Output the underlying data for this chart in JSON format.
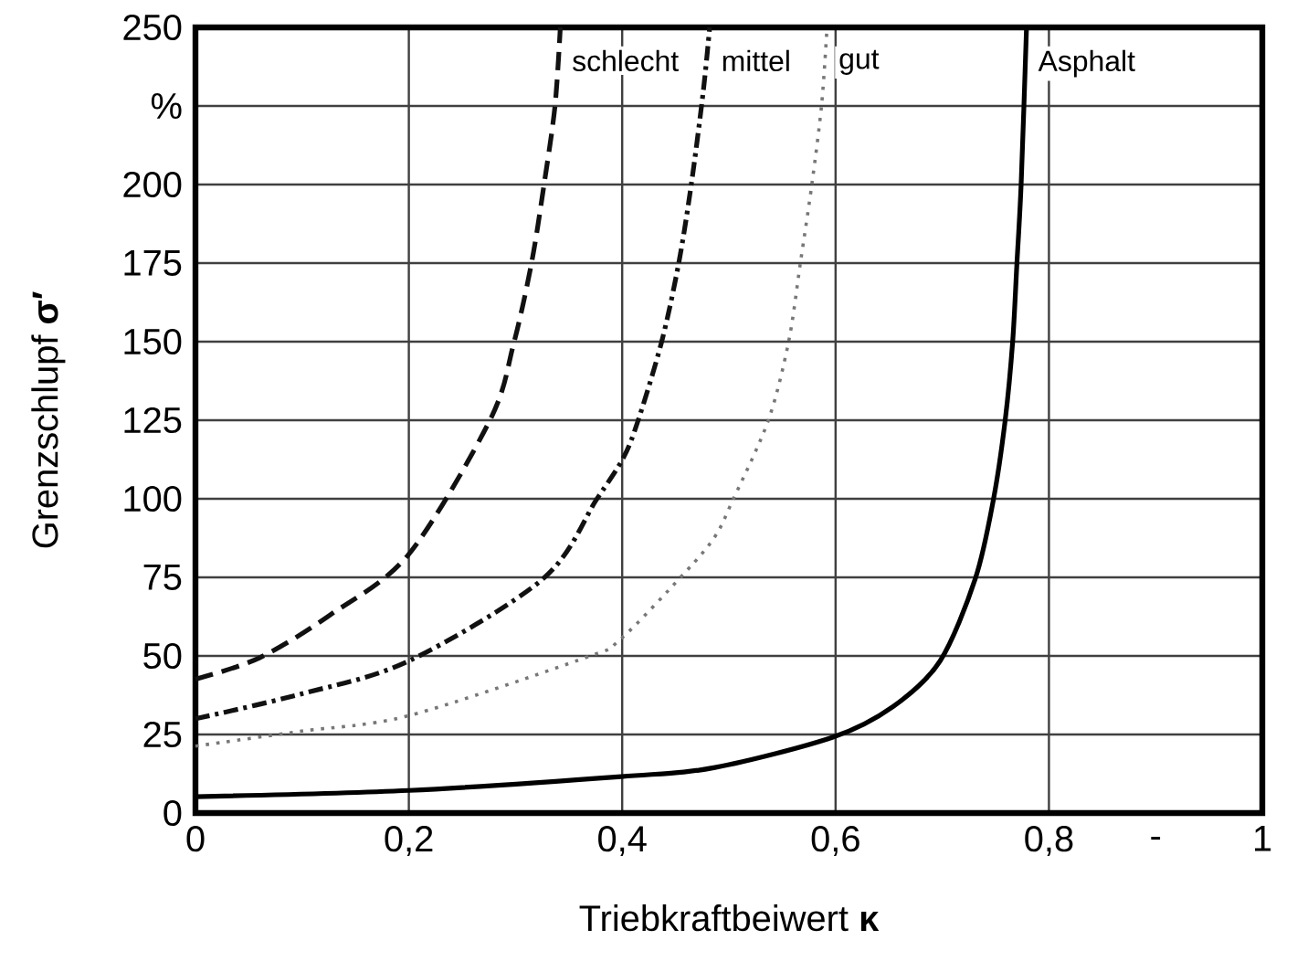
{
  "chart_data": {
    "type": "line",
    "xlabel": "Triebkraftbeiwert **κ**",
    "ylabel": "Grenzschlupf **σ′**",
    "annotations": [
      "-"
    ],
    "xlim": [
      0,
      1
    ],
    "ylim": [
      0,
      250
    ],
    "xticks": [
      0,
      {
        "value": 0.2,
        "label": "0,2"
      },
      {
        "value": 0.4,
        "label": "0,4"
      },
      {
        "value": 0.6,
        "label": "0,6"
      },
      {
        "value": 0.8,
        "label": "0,8"
      },
      1
    ],
    "yticks": [
      0,
      25,
      50,
      75,
      100,
      125,
      150,
      175,
      200,
      {
        "value": 225,
        "label": "%"
      },
      250
    ],
    "grid": true,
    "marker": "none",
    "series": [
      {
        "name": "schlecht",
        "color": "#111111",
        "line_style": "dashed",
        "x": [
          0,
          0.06,
          0.126,
          0.2,
          0.276,
          0.298,
          0.315,
          0.327,
          0.337,
          0.342
        ],
        "values": [
          42.6,
          49.4,
          63,
          82.4,
          125,
          149,
          175,
          200.6,
          225,
          250
        ]
      },
      {
        "name": "mittel",
        "color": "#111111",
        "line_style": "dashdot",
        "x": [
          0,
          0.098,
          0.2,
          0.326,
          0.376,
          0.401,
          0.415,
          0.437,
          0.453,
          0.465,
          0.476,
          0.482
        ],
        "values": [
          30,
          37.8,
          48.4,
          74.6,
          99.8,
          113,
          125,
          150,
          175,
          200.6,
          229.7,
          250
        ]
      },
      {
        "name": "gut",
        "color": "#777777",
        "line_style": "dotted",
        "x": [
          0,
          0.098,
          0.2,
          0.365,
          0.398,
          0.459,
          0.487,
          0.504,
          0.537,
          0.556,
          0.567,
          0.578,
          0.587,
          0.592
        ],
        "values": [
          21.3,
          26,
          31,
          49.4,
          55.2,
          76.6,
          88,
          99.8,
          125,
          150,
          175,
          200.6,
          225.7,
          250
        ]
      },
      {
        "name": "Asphalt",
        "color": "#000000",
        "line_style": "solid",
        "x": [
          0,
          0.2,
          0.399,
          0.487,
          0.598,
          0.654,
          0.698,
          0.731,
          0.748,
          0.759,
          0.766,
          0.77,
          0.774,
          0.779
        ],
        "values": [
          5.2,
          7.2,
          11.6,
          14.5,
          24.2,
          33.9,
          48.4,
          74.6,
          99.8,
          125,
          150,
          175,
          200.6,
          250
        ]
      }
    ]
  }
}
